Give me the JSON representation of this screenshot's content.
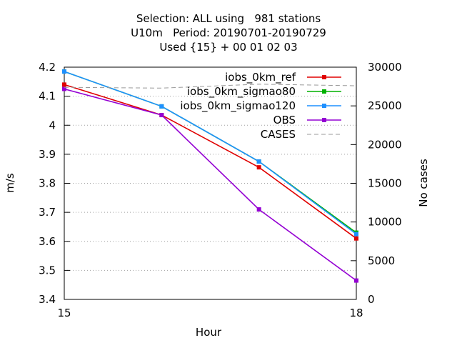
{
  "chart_data": {
    "type": "line",
    "title_lines": [
      "Selection: ALL using   981 stations",
      "U10m   Period: 20190701-20190729",
      "Used {15} + 00 01 02 03"
    ],
    "xlabel": "Hour",
    "ylabel": "m/s",
    "y2label": "No cases",
    "xlim": [
      15,
      18
    ],
    "ylim": [
      3.4,
      4.2
    ],
    "y2lim": [
      0,
      30000
    ],
    "x_ticks": [
      "15",
      "18"
    ],
    "y_ticks": [
      "3.4",
      "3.5",
      "3.6",
      "3.7",
      "3.8",
      "3.9",
      "4",
      "4.1",
      "4.2"
    ],
    "y2_ticks": [
      "0",
      "5000",
      "10000",
      "15000",
      "20000",
      "25000",
      "30000"
    ],
    "grid": true,
    "legend_position": "top-right",
    "series": [
      {
        "name": "iobs_0km_ref",
        "color": "#e00000",
        "axis": "y1",
        "x": [
          15,
          16,
          17,
          18
        ],
        "y": [
          4.14,
          4.035,
          3.855,
          3.61
        ]
      },
      {
        "name": "iobs_0km_sigmao80",
        "color": "#00b000",
        "axis": "y1",
        "x": [
          15,
          16,
          17,
          18
        ],
        "y": [
          4.185,
          4.065,
          3.875,
          3.63
        ]
      },
      {
        "name": "iobs_0km_sigmao120",
        "color": "#1e90ff",
        "axis": "y1",
        "x": [
          15,
          16,
          17,
          18
        ],
        "y": [
          4.185,
          4.065,
          3.875,
          3.625
        ]
      },
      {
        "name": "OBS",
        "color": "#9400d3",
        "axis": "y1",
        "x": [
          15,
          16,
          17,
          18
        ],
        "y": [
          4.125,
          4.035,
          3.71,
          3.465
        ]
      },
      {
        "name": "CASES",
        "color": "#999999",
        "axis": "y2",
        "dashed": true,
        "x": [
          15,
          16,
          17,
          18
        ],
        "y": [
          27400,
          27300,
          27800,
          27600
        ]
      }
    ]
  }
}
